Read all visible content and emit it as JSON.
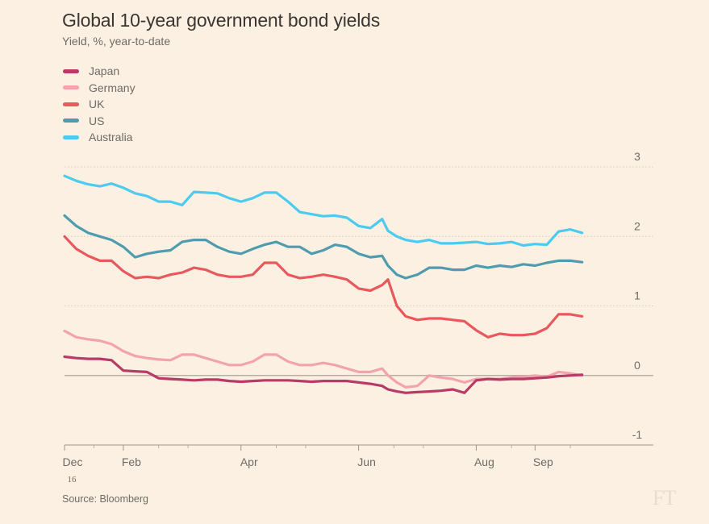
{
  "title": "Global 10-year government bond yields",
  "subtitle": "Yield, %, year-to-date",
  "source": "Source: Bloomberg",
  "logo": "FT",
  "colors": {
    "background": "#fcf0e2",
    "Japan": "#b83a67",
    "Germany": "#f2a3ad",
    "UK": "#e9585c",
    "US": "#4e9cad",
    "Australia": "#4ccbf0"
  },
  "chart_data": {
    "type": "line",
    "title": "Global 10-year government bond yields",
    "subtitle": "Yield, %, year-to-date",
    "ylabel": "Yield, %",
    "xlabel": "",
    "ylim": [
      -1,
      3
    ],
    "yticks": [
      3,
      2,
      1,
      0,
      -1
    ],
    "grid": true,
    "legend": "top-left",
    "xrange": [
      0,
      9.6
    ],
    "xticks": [
      {
        "label": "Dec",
        "sub": "16",
        "x": 0.0
      },
      {
        "label": "Feb",
        "x": 1.0
      },
      {
        "label": "Apr",
        "x": 3.0
      },
      {
        "label": "Jun",
        "x": 5.0
      },
      {
        "label": "Aug",
        "x": 7.0
      },
      {
        "label": "Sep",
        "x": 8.0
      }
    ],
    "minor_ticks": [
      0.5,
      1.6,
      2.1,
      3.6,
      4.1,
      5.6,
      6.1,
      7.6,
      8.6
    ],
    "series": [
      {
        "name": "Australia",
        "x": [
          0,
          0.2,
          0.4,
          0.6,
          0.8,
          1.0,
          1.2,
          1.4,
          1.6,
          1.8,
          2.0,
          2.2,
          2.4,
          2.6,
          2.8,
          3.0,
          3.2,
          3.4,
          3.6,
          3.8,
          4.0,
          4.2,
          4.4,
          4.6,
          4.8,
          5.0,
          5.2,
          5.4,
          5.5,
          5.65,
          5.8,
          6.0,
          6.2,
          6.4,
          6.6,
          6.8,
          7.0,
          7.2,
          7.4,
          7.6,
          7.8,
          8.0,
          8.2,
          8.4,
          8.6,
          8.8
        ],
        "values": [
          2.87,
          2.8,
          2.75,
          2.72,
          2.76,
          2.7,
          2.62,
          2.58,
          2.5,
          2.5,
          2.45,
          2.64,
          2.63,
          2.62,
          2.55,
          2.5,
          2.55,
          2.63,
          2.63,
          2.5,
          2.35,
          2.32,
          2.29,
          2.3,
          2.27,
          2.15,
          2.12,
          2.25,
          2.08,
          2.0,
          1.95,
          1.92,
          1.95,
          1.9,
          1.9,
          1.91,
          1.92,
          1.89,
          1.9,
          1.92,
          1.87,
          1.89,
          1.88,
          2.07,
          2.1,
          2.05
        ]
      },
      {
        "name": "US",
        "x": [
          0,
          0.2,
          0.4,
          0.6,
          0.8,
          1.0,
          1.2,
          1.4,
          1.6,
          1.8,
          2.0,
          2.2,
          2.4,
          2.6,
          2.8,
          3.0,
          3.2,
          3.4,
          3.6,
          3.8,
          4.0,
          4.2,
          4.4,
          4.6,
          4.8,
          5.0,
          5.2,
          5.4,
          5.5,
          5.65,
          5.8,
          6.0,
          6.2,
          6.4,
          6.6,
          6.8,
          7.0,
          7.2,
          7.4,
          7.6,
          7.8,
          8.0,
          8.2,
          8.4,
          8.6,
          8.8
        ],
        "values": [
          2.3,
          2.15,
          2.05,
          2.0,
          1.95,
          1.85,
          1.7,
          1.75,
          1.78,
          1.8,
          1.92,
          1.95,
          1.95,
          1.85,
          1.78,
          1.75,
          1.82,
          1.88,
          1.92,
          1.85,
          1.85,
          1.75,
          1.8,
          1.88,
          1.85,
          1.75,
          1.7,
          1.72,
          1.58,
          1.45,
          1.4,
          1.45,
          1.55,
          1.55,
          1.52,
          1.52,
          1.58,
          1.55,
          1.58,
          1.56,
          1.6,
          1.58,
          1.62,
          1.65,
          1.65,
          1.63
        ]
      },
      {
        "name": "UK",
        "x": [
          0,
          0.2,
          0.4,
          0.6,
          0.8,
          1.0,
          1.2,
          1.4,
          1.6,
          1.8,
          2.0,
          2.2,
          2.4,
          2.6,
          2.8,
          3.0,
          3.2,
          3.4,
          3.6,
          3.8,
          4.0,
          4.2,
          4.4,
          4.6,
          4.8,
          5.0,
          5.2,
          5.4,
          5.5,
          5.65,
          5.8,
          6.0,
          6.2,
          6.4,
          6.6,
          6.8,
          7.0,
          7.2,
          7.4,
          7.6,
          7.8,
          8.0,
          8.2,
          8.4,
          8.6,
          8.8
        ],
        "values": [
          2.0,
          1.82,
          1.72,
          1.65,
          1.65,
          1.5,
          1.4,
          1.42,
          1.4,
          1.45,
          1.48,
          1.55,
          1.52,
          1.45,
          1.42,
          1.42,
          1.45,
          1.62,
          1.62,
          1.45,
          1.4,
          1.42,
          1.45,
          1.42,
          1.38,
          1.25,
          1.22,
          1.3,
          1.38,
          1.0,
          0.85,
          0.8,
          0.82,
          0.82,
          0.8,
          0.78,
          0.65,
          0.55,
          0.6,
          0.58,
          0.58,
          0.6,
          0.68,
          0.88,
          0.88,
          0.85
        ]
      },
      {
        "name": "Germany",
        "x": [
          0,
          0.2,
          0.4,
          0.6,
          0.8,
          1.0,
          1.2,
          1.4,
          1.6,
          1.8,
          2.0,
          2.2,
          2.4,
          2.6,
          2.8,
          3.0,
          3.2,
          3.4,
          3.6,
          3.8,
          4.0,
          4.2,
          4.4,
          4.6,
          4.8,
          5.0,
          5.2,
          5.4,
          5.5,
          5.65,
          5.8,
          6.0,
          6.2,
          6.4,
          6.6,
          6.8,
          7.0,
          7.2,
          7.4,
          7.6,
          7.8,
          8.0,
          8.2,
          8.4,
          8.6,
          8.8
        ],
        "values": [
          0.64,
          0.55,
          0.52,
          0.5,
          0.45,
          0.35,
          0.28,
          0.25,
          0.23,
          0.22,
          0.3,
          0.3,
          0.25,
          0.2,
          0.15,
          0.15,
          0.2,
          0.3,
          0.3,
          0.2,
          0.15,
          0.15,
          0.18,
          0.15,
          0.1,
          0.05,
          0.05,
          0.1,
          0.0,
          -0.1,
          -0.17,
          -0.15,
          0.0,
          -0.03,
          -0.05,
          -0.1,
          -0.05,
          -0.05,
          -0.05,
          -0.03,
          -0.02,
          0.0,
          -0.02,
          0.05,
          0.03,
          0.0
        ]
      },
      {
        "name": "Japan",
        "x": [
          0,
          0.2,
          0.4,
          0.6,
          0.8,
          1.0,
          1.2,
          1.4,
          1.6,
          1.8,
          2.0,
          2.2,
          2.4,
          2.6,
          2.8,
          3.0,
          3.2,
          3.4,
          3.6,
          3.8,
          4.0,
          4.2,
          4.4,
          4.6,
          4.8,
          5.0,
          5.2,
          5.4,
          5.5,
          5.65,
          5.8,
          6.0,
          6.2,
          6.4,
          6.6,
          6.8,
          7.0,
          7.2,
          7.4,
          7.6,
          7.8,
          8.0,
          8.2,
          8.4,
          8.6,
          8.8
        ],
        "values": [
          0.27,
          0.25,
          0.24,
          0.24,
          0.22,
          0.07,
          0.06,
          0.05,
          -0.04,
          -0.05,
          -0.06,
          -0.07,
          -0.06,
          -0.06,
          -0.08,
          -0.09,
          -0.08,
          -0.07,
          -0.07,
          -0.07,
          -0.08,
          -0.09,
          -0.08,
          -0.08,
          -0.08,
          -0.1,
          -0.12,
          -0.15,
          -0.2,
          -0.23,
          -0.25,
          -0.24,
          -0.23,
          -0.22,
          -0.2,
          -0.25,
          -0.07,
          -0.05,
          -0.06,
          -0.05,
          -0.05,
          -0.04,
          -0.03,
          -0.01,
          0.0,
          0.01
        ]
      }
    ]
  }
}
